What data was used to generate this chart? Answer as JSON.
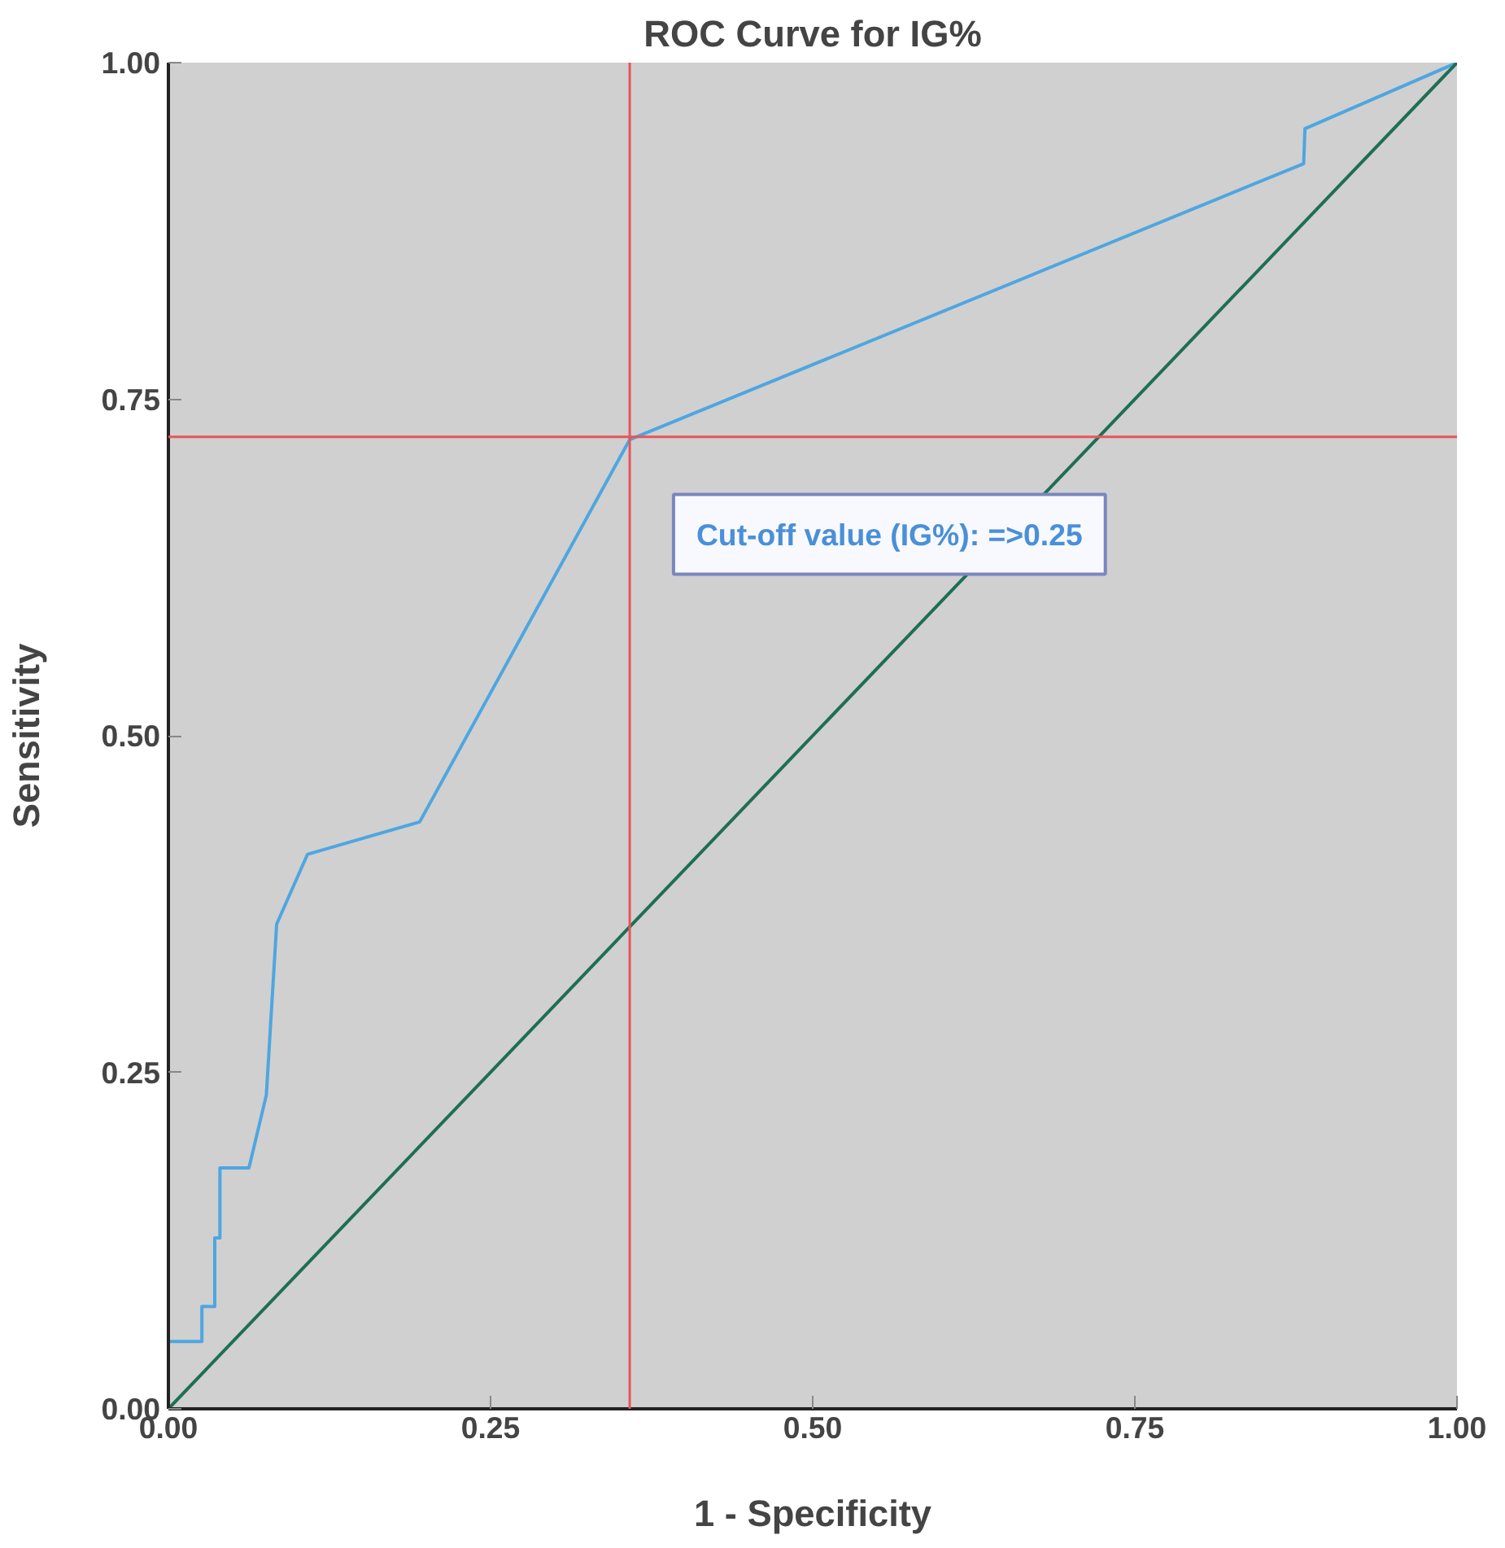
{
  "chart_data": {
    "type": "line",
    "title": "ROC Curve for IG%",
    "xlabel": "1 - Specificity",
    "ylabel": "Sensitivity",
    "series": [
      {
        "color": "#4ea6e0",
        "x": [
          0,
          0,
          0.026,
          0.026,
          0.036,
          0.036,
          0.04,
          0.04,
          0.0625,
          0.076,
          0.084,
          0.108,
          0.195,
          0.358,
          0.881,
          0.882,
          1
        ],
        "values": [
          0,
          0.05,
          0.05,
          0.076,
          0.076,
          0.127,
          0.127,
          0.179,
          0.179,
          0.233,
          0.36,
          0.412,
          0.436,
          0.72,
          0.925,
          0.951,
          1
        ]
      },
      {
        "color": "#1e6e55",
        "x": [
          0,
          1
        ],
        "values": [
          0,
          1
        ]
      }
    ],
    "ref_lines": [
      {
        "axis": "x",
        "value": 0.358,
        "color": "#e8555a"
      },
      {
        "axis": "y",
        "value": 0.722,
        "color": "#e8555a"
      }
    ],
    "annotations": [
      "Cut-off value (IG%): =>0.25"
    ],
    "xlim": [
      0,
      1
    ],
    "ylim": [
      0,
      1
    ],
    "xticks": [
      {
        "value": 0,
        "label": "0.00"
      },
      {
        "value": 0.25,
        "label": "0.25"
      },
      {
        "value": 0.5,
        "label": "0.50"
      },
      {
        "value": 0.75,
        "label": "0.75"
      },
      {
        "value": 1,
        "label": "1.00"
      }
    ],
    "yticks": [
      {
        "value": 0,
        "label": "0.00"
      },
      {
        "value": 0.25,
        "label": "0.25"
      },
      {
        "value": 0.5,
        "label": "0.50"
      },
      {
        "value": 0.75,
        "label": "0.75"
      },
      {
        "value": 1,
        "label": "1.00"
      }
    ],
    "grid": false,
    "marker": "none",
    "line_style": "solid"
  }
}
